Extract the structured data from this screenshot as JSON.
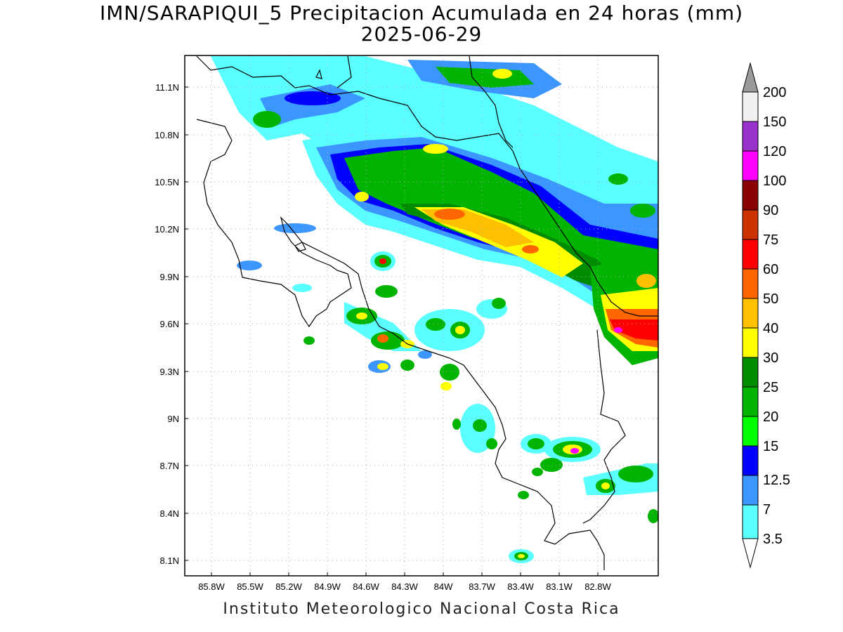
{
  "title": "IMN/SARAPIQUI_5 Precipitacion Acumulada en 24 horas (mm)",
  "date": "2025-06-29",
  "footer": "Instituto Meteorologico Nacional Costa Rica",
  "map": {
    "lon_labels": [
      "85.8W",
      "85.5W",
      "85.2W",
      "84.9W",
      "84.6W",
      "84.3W",
      "84W",
      "83.7W",
      "83.4W",
      "83.1W",
      "82.8W"
    ],
    "lat_labels": [
      "11.1N",
      "10.8N",
      "10.5N",
      "10.2N",
      "9.9N",
      "9.6N",
      "9.3N",
      "9N",
      "8.7N",
      "8.4N",
      "8.1N"
    ],
    "grid": "dotted"
  },
  "colorbar": {
    "labels": [
      "200",
      "150",
      "120",
      "100",
      "90",
      "75",
      "60",
      "50",
      "40",
      "30",
      "25",
      "20",
      "15",
      "12.5",
      "7",
      "3.5"
    ],
    "colors": [
      "#9a9a9a",
      "#f0f0f0",
      "#9933cc",
      "#ff00ff",
      "#8b0000",
      "#cc3300",
      "#ff0000",
      "#ff6600",
      "#ffc000",
      "#ffff00",
      "#008c00",
      "#00b400",
      "#00ff00",
      "#0000ff",
      "#3c96ff",
      "#5affff"
    ]
  }
}
